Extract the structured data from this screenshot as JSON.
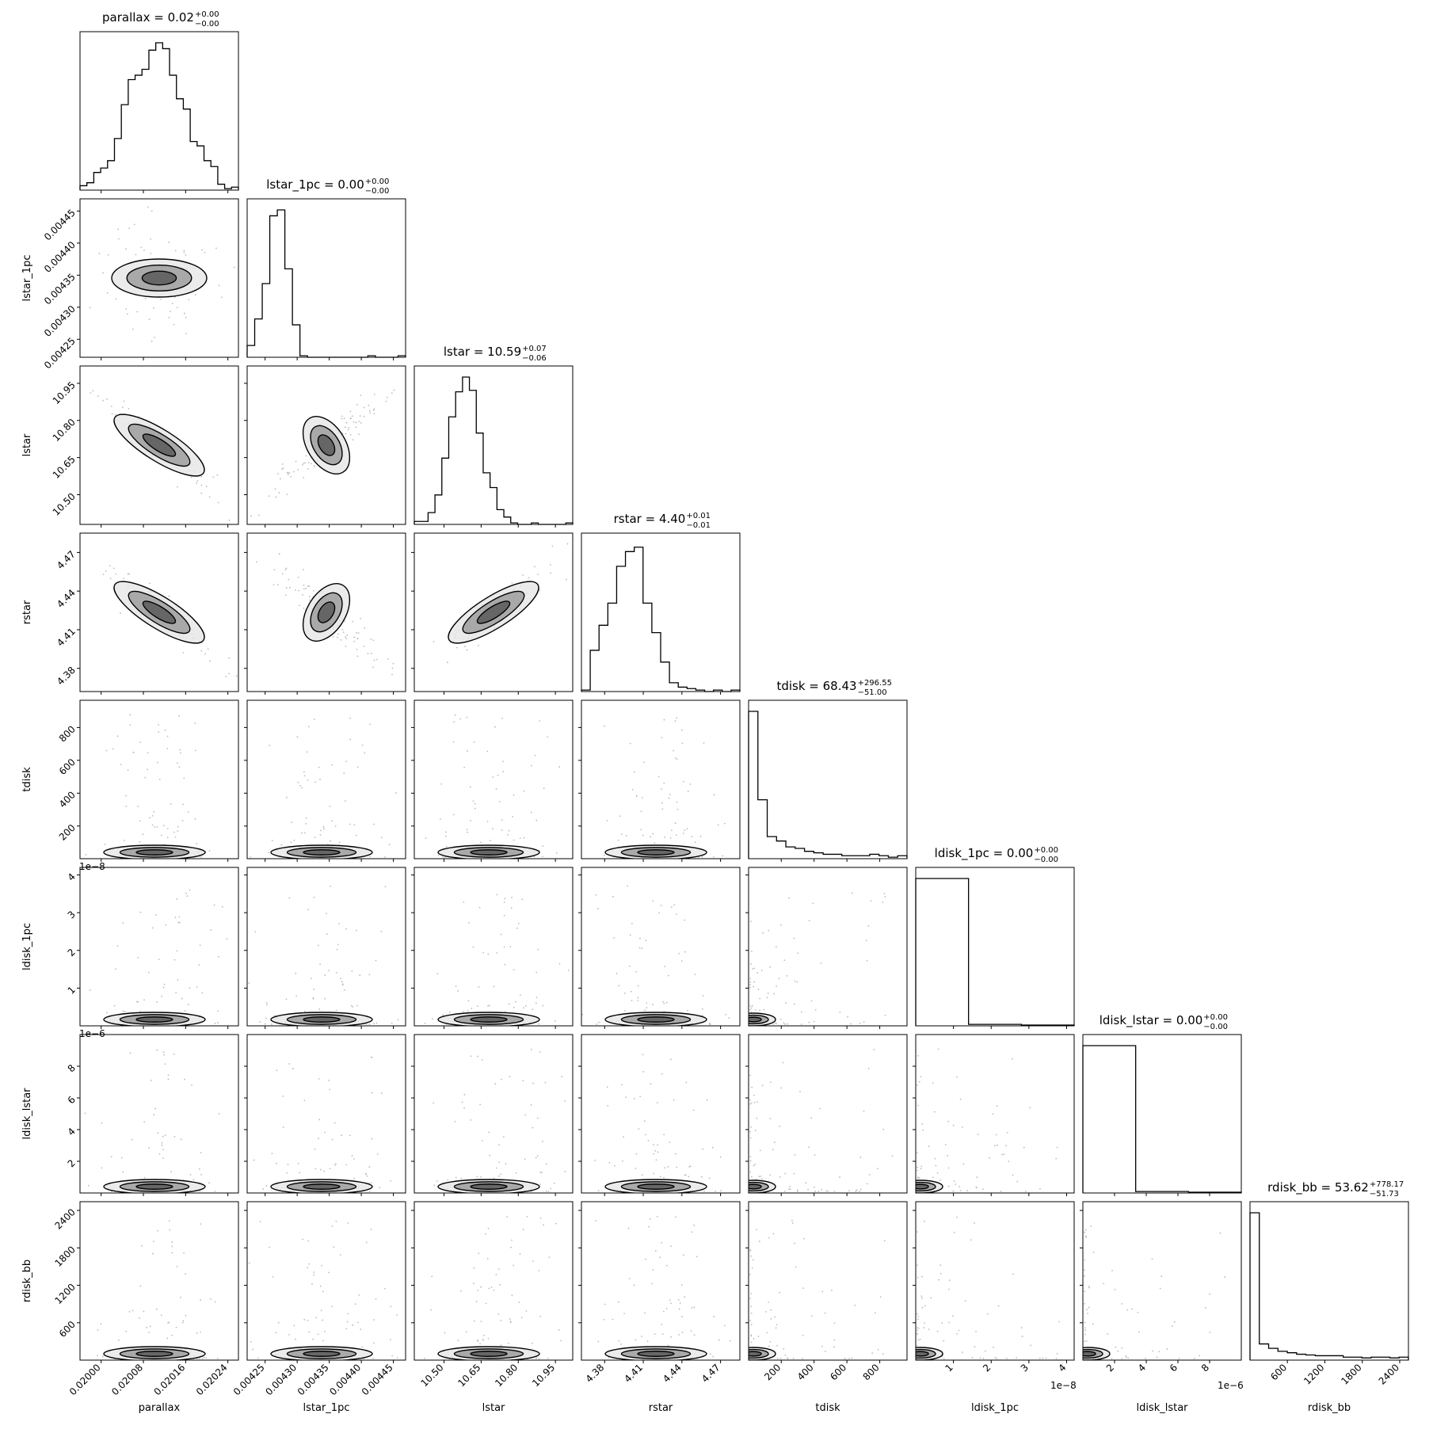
{
  "figure": {
    "type": "corner-plot"
  },
  "chart_data": {
    "type": "corner",
    "params": [
      "parallax",
      "lstar_1pc",
      "lstar",
      "rstar",
      "tdisk",
      "ldisk_1pc",
      "ldisk_lstar",
      "rdisk_bb"
    ],
    "axis_labels": [
      "parallax",
      "lstar_1pc",
      "lstar",
      "rstar",
      "tdisk",
      "ldisk_1pc",
      "ldisk_lstar",
      "rdisk_bb"
    ],
    "titles": [
      {
        "main": "parallax = 0.02",
        "plus": "+0.00",
        "minus": "−0.00"
      },
      {
        "main": "lstar_1pc = 0.00",
        "plus": "+0.00",
        "minus": "−0.00"
      },
      {
        "main": "lstar = 10.59",
        "plus": "+0.07",
        "minus": "−0.06"
      },
      {
        "main": "rstar = 4.40",
        "plus": "+0.01",
        "minus": "−0.01"
      },
      {
        "main": "tdisk = 68.43",
        "plus": "+296.55",
        "minus": "−51.00"
      },
      {
        "main": "ldisk_1pc = 0.00",
        "plus": "+0.00",
        "minus": "−0.00"
      },
      {
        "main": "ldisk_lstar = 0.00",
        "plus": "+0.00",
        "minus": "−0.00"
      },
      {
        "main": "rdisk_bb = 53.62",
        "plus": "+778.17",
        "minus": "−51.73"
      }
    ],
    "ranges": [
      [
        0.01996,
        0.02026
      ],
      [
        0.004222,
        0.004469
      ],
      [
        10.38,
        11.02
      ],
      [
        4.362,
        4.485
      ],
      [
        1,
        966
      ],
      [
        0,
        4.2e-08
      ],
      [
        0,
        1e-05
      ],
      [
        1,
        2540
      ]
    ],
    "x_ticks": [
      {
        "values": [
          0.02,
          0.02008,
          0.02016,
          0.02024
        ],
        "labels": [
          "0.02000",
          "0.02008",
          "0.02016",
          "0.02024"
        ]
      },
      {
        "values": [
          0.00425,
          0.0043,
          0.00435,
          0.0044,
          0.00445
        ],
        "labels": [
          "0.00425",
          "0.00430",
          "0.00435",
          "0.00440",
          "0.00445"
        ]
      },
      {
        "values": [
          10.5,
          10.65,
          10.8,
          10.95
        ],
        "labels": [
          "10.50",
          "10.65",
          "10.80",
          "10.95"
        ]
      },
      {
        "values": [
          4.38,
          4.41,
          4.44,
          4.47
        ],
        "labels": [
          "4.38",
          "4.41",
          "4.44",
          "4.47"
        ]
      },
      {
        "values": [
          200,
          400,
          600,
          800
        ],
        "labels": [
          "200",
          "400",
          "600",
          "800"
        ]
      },
      {
        "values": [
          1e-08,
          2e-08,
          3e-08,
          4e-08
        ],
        "labels": [
          "1",
          "2",
          "3",
          "4"
        ]
      },
      {
        "values": [
          2e-06,
          4e-06,
          6e-06,
          8e-06
        ],
        "labels": [
          "2",
          "4",
          "6",
          "8"
        ]
      },
      {
        "values": [
          600,
          1200,
          1800,
          2400
        ],
        "labels": [
          "600",
          "1200",
          "1800",
          "2400"
        ]
      }
    ],
    "y_ticks": [
      null,
      {
        "values": [
          0.00425,
          0.0043,
          0.00435,
          0.0044,
          0.00445
        ],
        "labels": [
          "0.00425",
          "0.00430",
          "0.00435",
          "0.00440",
          "0.00445"
        ]
      },
      {
        "values": [
          10.5,
          10.65,
          10.8,
          10.95
        ],
        "labels": [
          "10.50",
          "10.65",
          "10.80",
          "10.95"
        ]
      },
      {
        "values": [
          4.38,
          4.41,
          4.44,
          4.47
        ],
        "labels": [
          "4.38",
          "4.41",
          "4.44",
          "4.47"
        ]
      },
      {
        "values": [
          200,
          400,
          600,
          800
        ],
        "labels": [
          "200",
          "400",
          "600",
          "800"
        ]
      },
      {
        "values": [
          1e-08,
          2e-08,
          3e-08,
          4e-08
        ],
        "labels": [
          "1",
          "2",
          "3",
          "4"
        ]
      },
      {
        "values": [
          2e-06,
          4e-06,
          6e-06,
          8e-06
        ],
        "labels": [
          "2",
          "4",
          "6",
          "8"
        ]
      },
      {
        "values": [
          600,
          1200,
          1800,
          2400
        ],
        "labels": [
          "600",
          "1200",
          "1800",
          "2400"
        ]
      }
    ],
    "offset_texts": [
      "",
      "",
      "",
      "",
      "",
      "1e−8",
      "1e−6",
      ""
    ],
    "histograms": [
      [
        0.03,
        0.05,
        0.12,
        0.15,
        0.2,
        0.35,
        0.58,
        0.75,
        0.78,
        0.82,
        0.95,
        1.0,
        0.96,
        0.78,
        0.62,
        0.55,
        0.33,
        0.3,
        0.2,
        0.16,
        0.04,
        0.01,
        0.02
      ],
      [
        0.08,
        0.26,
        0.5,
        0.96,
        1.0,
        0.6,
        0.22,
        0.01,
        0.0,
        0.0,
        0.0,
        0.0,
        0.0,
        0.0,
        0.0,
        0.0,
        0.01,
        0.0,
        0.0,
        0.0,
        0.01
      ],
      [
        0.02,
        0.02,
        0.08,
        0.2,
        0.45,
        0.73,
        0.9,
        1.0,
        0.91,
        0.62,
        0.35,
        0.25,
        0.1,
        0.05,
        0.01,
        0.0,
        0.0,
        0.01,
        0.0,
        0.0,
        0.0,
        0.0,
        0.01
      ],
      [
        0.01,
        0.28,
        0.45,
        0.6,
        0.85,
        0.95,
        0.98,
        0.6,
        0.4,
        0.2,
        0.06,
        0.03,
        0.02,
        0.01,
        0.0,
        0.01,
        0.0,
        0.01
      ],
      [
        1.0,
        0.4,
        0.15,
        0.12,
        0.08,
        0.07,
        0.05,
        0.04,
        0.03,
        0.03,
        0.02,
        0.02,
        0.02,
        0.03,
        0.02,
        0.01,
        0.02
      ],
      [
        1.0,
        0.01,
        0.005
      ],
      [
        1.0,
        0.01,
        0.005
      ],
      [
        1.0,
        0.11,
        0.08,
        0.06,
        0.05,
        0.04,
        0.035,
        0.03,
        0.03,
        0.03,
        0.02,
        0.02,
        0.015,
        0.02,
        0.02,
        0.015,
        0.02
      ]
    ],
    "correlated_pairs": [
      {
        "i": 2,
        "j": 0,
        "dir": -1
      },
      {
        "i": 2,
        "j": 1,
        "dir": 1
      },
      {
        "i": 3,
        "j": 0,
        "dir": -1
      },
      {
        "i": 3,
        "j": 1,
        "dir": -1
      },
      {
        "i": 3,
        "j": 2,
        "dir": 1
      }
    ],
    "colors": {
      "line": "#000000",
      "background": "#ffffff"
    }
  }
}
